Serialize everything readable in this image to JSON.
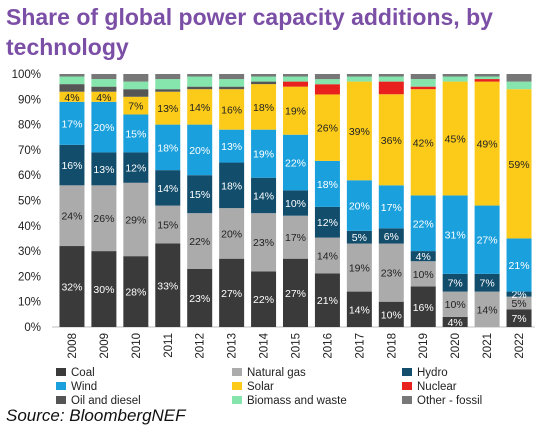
{
  "chart_data": {
    "type": "bar",
    "stacked": true,
    "title": "Share of global power capacity additions, by technology",
    "categories": [
      "2008",
      "2009",
      "2010",
      "2011",
      "2012",
      "2013",
      "2014",
      "2015",
      "2016",
      "2017",
      "2018",
      "2019",
      "2020",
      "2021",
      "2022"
    ],
    "y_ticks": [
      "0%",
      "10%",
      "20%",
      "30%",
      "40%",
      "50%",
      "60%",
      "70%",
      "80%",
      "90%",
      "100%"
    ],
    "ylim": [
      0,
      100
    ],
    "grid": false,
    "legend_position": "bottom",
    "series": [
      {
        "name": "Coal",
        "color": "#3a3a3a",
        "values": [
          32,
          30,
          28,
          33,
          23,
          27,
          22,
          27,
          21,
          14,
          10,
          16,
          4,
          0,
          7
        ],
        "labels": [
          "32%",
          "30%",
          "28%",
          "33%",
          "23%",
          "27%",
          "22%",
          "27%",
          "21%",
          "14%",
          "10%",
          "16%",
          "4%",
          "",
          "7%"
        ],
        "label_color": "#ffffff"
      },
      {
        "name": "Natural gas",
        "color": "#ababab",
        "values": [
          24,
          26,
          29,
          15,
          22,
          20,
          23,
          17,
          14,
          19,
          23,
          10,
          10,
          14,
          5
        ],
        "labels": [
          "24%",
          "26%",
          "29%",
          "15%",
          "22%",
          "20%",
          "23%",
          "17%",
          "14%",
          "19%",
          "23%",
          "10%",
          "10%",
          "14%",
          "5%"
        ],
        "label_color": "#222222"
      },
      {
        "name": "Hydro",
        "color": "#124d6c",
        "values": [
          16,
          13,
          12,
          14,
          15,
          18,
          14,
          10,
          12,
          5,
          6,
          4,
          7,
          7,
          2
        ],
        "labels": [
          "16%",
          "13%",
          "12%",
          "14%",
          "15%",
          "18%",
          "14%",
          "10%",
          "12%",
          "5%",
          "6%",
          "4%",
          "7%",
          "7%",
          "2%"
        ],
        "label_color": "#ffffff"
      },
      {
        "name": "Wind",
        "color": "#1aa0dc",
        "values": [
          17,
          20,
          15,
          18,
          20,
          13,
          19,
          22,
          18,
          20,
          17,
          22,
          31,
          27,
          21
        ],
        "labels": [
          "17%",
          "20%",
          "15%",
          "18%",
          "20%",
          "13%",
          "19%",
          "22%",
          "18%",
          "20%",
          "17%",
          "22%",
          "31%",
          "27%",
          "21%"
        ],
        "label_color": "#ffffff"
      },
      {
        "name": "Solar",
        "color": "#fccb1a",
        "values": [
          4,
          4,
          7,
          13,
          14,
          16,
          18,
          19,
          26,
          39,
          36,
          42,
          45,
          49,
          59
        ],
        "labels": [
          "4%",
          "4%",
          "7%",
          "13%",
          "14%",
          "16%",
          "18%",
          "19%",
          "26%",
          "39%",
          "36%",
          "42%",
          "45%",
          "49%",
          "59%"
        ],
        "label_color": "#222222"
      },
      {
        "name": "Nuclear",
        "color": "#e8201e",
        "values": [
          0,
          0,
          0,
          0,
          0,
          0,
          0,
          2,
          4,
          0,
          5,
          1,
          0,
          1,
          0
        ],
        "labels": [],
        "label_color": "#ffffff"
      },
      {
        "name": "Oil and diesel",
        "color": "#555555",
        "values": [
          3,
          2,
          3,
          1,
          1,
          1,
          1,
          0,
          0,
          0,
          0,
          0,
          0,
          0,
          0
        ],
        "labels": [],
        "label_color": "#ffffff"
      },
      {
        "name": "Biomass and waste",
        "color": "#86e4ad",
        "values": [
          3,
          3,
          3,
          4,
          4,
          3,
          2,
          2,
          2,
          2,
          2,
          3,
          2,
          1,
          3
        ],
        "labels": [],
        "label_color": "#222222"
      },
      {
        "name": "Other - fossil",
        "color": "#777777",
        "values": [
          1,
          2,
          3,
          2,
          1,
          2,
          1,
          1,
          2,
          1,
          1,
          2,
          1,
          1,
          3
        ],
        "labels": [],
        "label_color": "#ffffff"
      }
    ]
  },
  "source": "Source: BloombergNEF"
}
